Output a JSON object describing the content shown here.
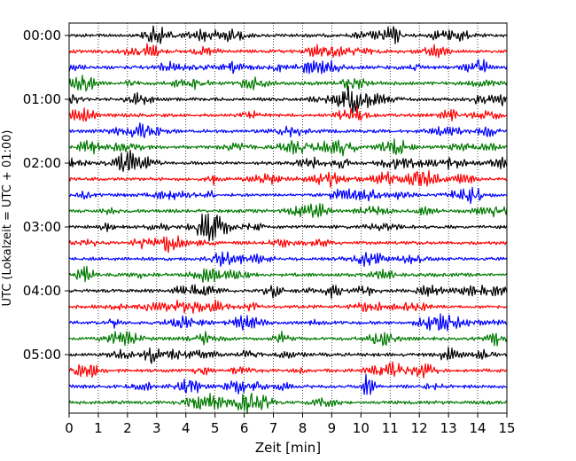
{
  "chart_data": {
    "type": "line",
    "xlabel": "Zeit  [min]",
    "ylabel": "UTC (Lokalzeit = UTC + 01:00)",
    "xlim": [
      0,
      15
    ],
    "x_ticks": [
      "0",
      "1",
      "2",
      "3",
      "4",
      "5",
      "6",
      "7",
      "8",
      "9",
      "10",
      "11",
      "12",
      "13",
      "14",
      "15"
    ],
    "y_tick_labels": [
      "00:00",
      "01:00",
      "02:00",
      "03:00",
      "04:00",
      "05:00"
    ],
    "grid": "vertical-dotted",
    "trace_colors": [
      "#000000",
      "#ff0000",
      "#0000ff",
      "#007a00"
    ],
    "trace_count": 24,
    "trace_interval_minutes": 15,
    "note_values": "seismogram helicorder: each row is a 15-minute trace; amplitudes are noise-like"
  }
}
